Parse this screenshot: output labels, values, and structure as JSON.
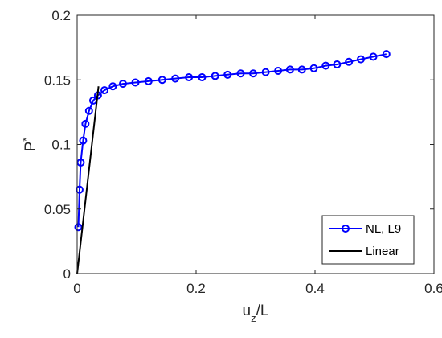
{
  "chart_data": {
    "type": "line",
    "xlim": [
      0,
      0.6
    ],
    "ylim": [
      0,
      0.2
    ],
    "x_ticks": [
      0,
      0.2,
      0.4,
      0.6
    ],
    "y_ticks": [
      0,
      0.05,
      0.1,
      0.15,
      0.2
    ],
    "x_tick_labels": [
      "0",
      "0.2",
      "0.4",
      "0.6"
    ],
    "y_tick_labels": [
      "0",
      "0.05",
      "0.1",
      "0.15",
      "0.2"
    ],
    "xlabel": {
      "base": "u",
      "sub": "z",
      "rest": "/L"
    },
    "ylabel": {
      "base": "P",
      "sup": "*"
    },
    "grid": false,
    "legend_position": "bottom-right",
    "series": [
      {
        "name": "NL, L9",
        "color": "#0000ff",
        "marker": "circle",
        "x": [
          0.002,
          0.004,
          0.006,
          0.01,
          0.014,
          0.02,
          0.027,
          0.035,
          0.046,
          0.06,
          0.077,
          0.098,
          0.12,
          0.143,
          0.165,
          0.188,
          0.21,
          0.232,
          0.253,
          0.275,
          0.296,
          0.317,
          0.338,
          0.358,
          0.378,
          0.398,
          0.418,
          0.437,
          0.457,
          0.477,
          0.498,
          0.52
        ],
        "y": [
          0.036,
          0.065,
          0.086,
          0.103,
          0.116,
          0.126,
          0.134,
          0.138,
          0.142,
          0.145,
          0.147,
          0.148,
          0.149,
          0.15,
          0.151,
          0.152,
          0.152,
          0.153,
          0.154,
          0.155,
          0.155,
          0.156,
          0.157,
          0.158,
          0.158,
          0.159,
          0.161,
          0.162,
          0.164,
          0.166,
          0.168,
          0.17
        ]
      },
      {
        "name": "Linear",
        "color": "#000000",
        "marker": "none",
        "x": [
          0,
          0.036
        ],
        "y": [
          0,
          0.145
        ]
      }
    ]
  }
}
